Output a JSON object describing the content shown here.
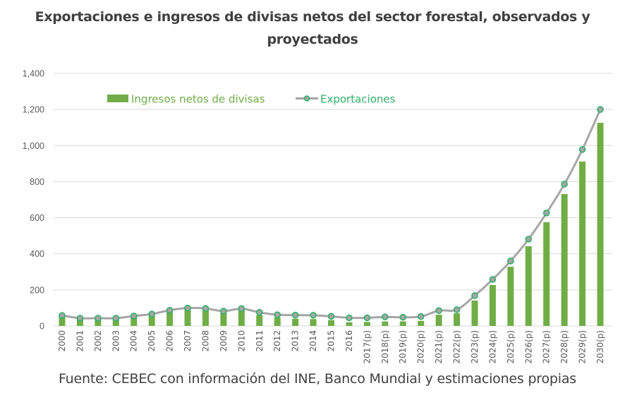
{
  "chart_data": {
    "type": "bar",
    "title": "Exportaciones e ingresos de divisas netos del sector forestal, observados y proyectados",
    "title_lines": [
      "Exportaciones e ingresos de divisas netos del sector forestal, observados y",
      "proyectados"
    ],
    "source": "Fuente: CEBEC con información del INE, Banco Mundial y estimaciones propias",
    "xlabel": "",
    "ylabel": "",
    "ylim": [
      0,
      1400
    ],
    "yticks": [
      0,
      200,
      400,
      600,
      800,
      1000,
      1200,
      1400
    ],
    "ytick_labels": [
      "0",
      "200",
      "400",
      "600",
      "800",
      "1,000",
      "1,200",
      "1,400"
    ],
    "grid": true,
    "legend_position": "top-left",
    "categories": [
      "2000",
      "2001",
      "2002",
      "2003",
      "2004",
      "2005",
      "2006",
      "2007",
      "2008",
      "2009",
      "2010",
      "2011",
      "2012",
      "2013",
      "2014",
      "2015",
      "2016",
      "2017(p)",
      "2018(p)",
      "2019(p)",
      "2020(p)",
      "2021(p)",
      "2022(p)",
      "2023(p)",
      "2024(p)",
      "2025(p)",
      "2026(p)",
      "2027(p)",
      "2028(p)",
      "2029(p)",
      "2030(p)"
    ],
    "series": [
      {
        "name": "Ingresos netos de divisas",
        "type": "bar",
        "color": "#70ad47",
        "values": [
          55,
          40,
          40,
          40,
          52,
          62,
          82,
          95,
          92,
          77,
          88,
          60,
          48,
          40,
          38,
          32,
          20,
          22,
          25,
          25,
          28,
          62,
          70,
          141,
          227,
          328,
          442,
          575,
          731,
          911,
          1126
        ]
      },
      {
        "name": "Exportaciones",
        "type": "line",
        "color": "#a6a6a6",
        "marker_fill": "#a6a6a6",
        "marker_edge": "#2fb06a",
        "values": [
          58,
          43,
          43,
          43,
          55,
          66,
          87,
          99,
          97,
          82,
          96,
          75,
          62,
          60,
          59,
          53,
          45,
          45,
          50,
          48,
          52,
          85,
          90,
          168,
          258,
          360,
          481,
          626,
          786,
          978,
          1200
        ]
      }
    ]
  }
}
